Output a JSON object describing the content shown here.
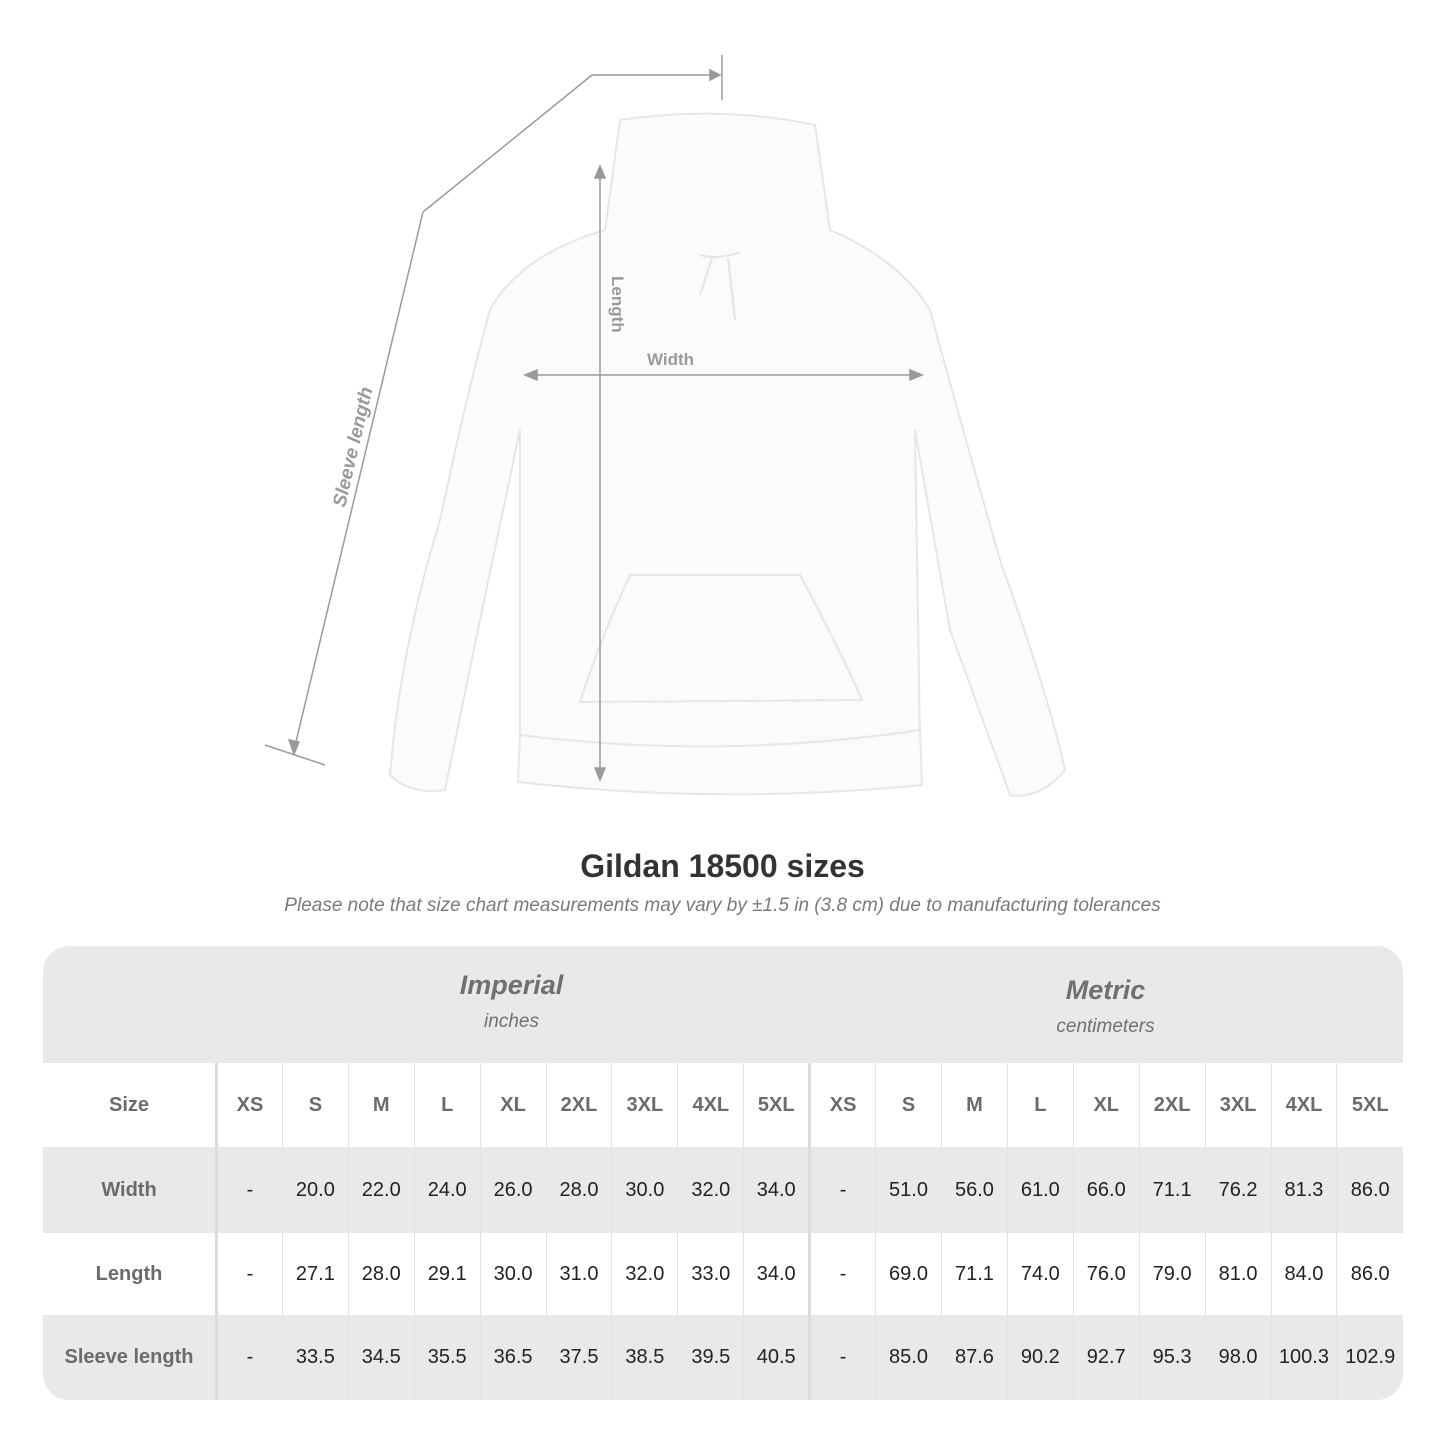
{
  "illustration": {
    "labels": {
      "length": "Length",
      "width": "Width",
      "sleeve": "Sleeve length"
    },
    "line_color": "#9a9a9a",
    "garment_color": "#ffffff"
  },
  "title": "Gildan 18500 sizes",
  "subtitle": "Please note that size chart measurements may vary by ±1.5 in (3.8 cm) due to manufacturing tolerances",
  "imperial": {
    "name": "Imperial",
    "unit": "inches"
  },
  "metric": {
    "name": "Metric",
    "unit": "centimeters"
  },
  "table": {
    "size_label": "Size",
    "sizes": [
      "XS",
      "S",
      "M",
      "L",
      "XL",
      "2XL",
      "3XL",
      "4XL",
      "5XL"
    ],
    "rows": [
      {
        "label": "Width",
        "imperial": [
          "-",
          "20.0",
          "22.0",
          "24.0",
          "26.0",
          "28.0",
          "30.0",
          "32.0",
          "34.0"
        ],
        "metric": [
          "-",
          "51.0",
          "56.0",
          "61.0",
          "66.0",
          "71.1",
          "76.2",
          "81.3",
          "86.0"
        ]
      },
      {
        "label": "Length",
        "imperial": [
          "-",
          "27.1",
          "28.0",
          "29.1",
          "30.0",
          "31.0",
          "32.0",
          "33.0",
          "34.0"
        ],
        "metric": [
          "-",
          "69.0",
          "71.1",
          "74.0",
          "76.0",
          "79.0",
          "81.0",
          "84.0",
          "86.0"
        ]
      },
      {
        "label": "Sleeve length",
        "imperial": [
          "-",
          "33.5",
          "34.5",
          "35.5",
          "36.5",
          "37.5",
          "38.5",
          "39.5",
          "40.5"
        ],
        "metric": [
          "-",
          "85.0",
          "87.6",
          "90.2",
          "92.7",
          "95.3",
          "98.0",
          "100.3",
          "102.9"
        ]
      }
    ]
  }
}
